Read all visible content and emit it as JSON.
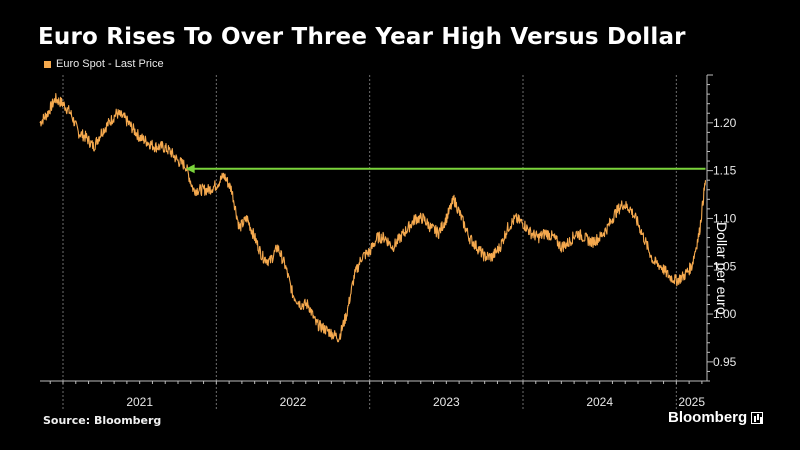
{
  "title": "Euro Rises To Over Three Year High Versus Dollar",
  "source": "Source: Bloomberg",
  "brand": "Bloomberg",
  "colors": {
    "series": "#f5a94e",
    "highlight": "#7ad33b",
    "grid": "#6e6e6e",
    "background": "#000000"
  },
  "chart_data": {
    "type": "line",
    "legend": [
      "Euro Spot - Last Price"
    ],
    "legend_position": "top-left",
    "ylabel": "Dollar per euro",
    "y_axis_side": "right",
    "ylim": [
      0.93,
      1.25
    ],
    "yticks": [
      "0.95",
      "1.00",
      "1.05",
      "1.10",
      "1.15",
      "1.20"
    ],
    "x_range": [
      2020.85,
      2025.2
    ],
    "year_boundaries": [
      2021,
      2022,
      2023,
      2024,
      2025
    ],
    "xtick_labels": [
      "2021",
      "2022",
      "2023",
      "2024",
      "2025"
    ],
    "grid": "vertical dashed at year boundaries",
    "series": [
      {
        "name": "Euro Spot - Last Price",
        "x": [
          2020.85,
          2020.9,
          2020.95,
          2021.0,
          2021.05,
          2021.1,
          2021.15,
          2021.2,
          2021.25,
          2021.3,
          2021.35,
          2021.4,
          2021.45,
          2021.5,
          2021.55,
          2021.6,
          2021.65,
          2021.7,
          2021.75,
          2021.8,
          2021.85,
          2021.9,
          2021.95,
          2022.0,
          2022.05,
          2022.1,
          2022.15,
          2022.2,
          2022.25,
          2022.3,
          2022.35,
          2022.4,
          2022.45,
          2022.5,
          2022.55,
          2022.6,
          2022.65,
          2022.7,
          2022.75,
          2022.8,
          2022.85,
          2022.9,
          2022.95,
          2023.0,
          2023.05,
          2023.1,
          2023.15,
          2023.2,
          2023.25,
          2023.3,
          2023.35,
          2023.4,
          2023.45,
          2023.5,
          2023.55,
          2023.6,
          2023.65,
          2023.7,
          2023.75,
          2023.8,
          2023.85,
          2023.9,
          2023.95,
          2024.0,
          2024.05,
          2024.1,
          2024.15,
          2024.2,
          2024.25,
          2024.3,
          2024.35,
          2024.4,
          2024.45,
          2024.5,
          2024.55,
          2024.6,
          2024.65,
          2024.7,
          2024.75,
          2024.8,
          2024.85,
          2024.9,
          2024.95,
          2025.0,
          2025.05,
          2025.1,
          2025.15,
          2025.19
        ],
        "values": [
          1.2,
          1.21,
          1.225,
          1.22,
          1.21,
          1.19,
          1.185,
          1.175,
          1.19,
          1.2,
          1.21,
          1.205,
          1.195,
          1.185,
          1.18,
          1.175,
          1.175,
          1.17,
          1.16,
          1.155,
          1.13,
          1.13,
          1.13,
          1.135,
          1.145,
          1.13,
          1.09,
          1.1,
          1.08,
          1.06,
          1.055,
          1.07,
          1.05,
          1.02,
          1.01,
          1.01,
          0.99,
          0.985,
          0.98,
          0.975,
          1.0,
          1.04,
          1.06,
          1.065,
          1.08,
          1.08,
          1.07,
          1.08,
          1.09,
          1.1,
          1.1,
          1.09,
          1.085,
          1.1,
          1.12,
          1.1,
          1.08,
          1.07,
          1.06,
          1.06,
          1.07,
          1.09,
          1.1,
          1.095,
          1.085,
          1.08,
          1.085,
          1.08,
          1.07,
          1.075,
          1.085,
          1.08,
          1.075,
          1.08,
          1.09,
          1.105,
          1.115,
          1.11,
          1.095,
          1.075,
          1.055,
          1.05,
          1.04,
          1.035,
          1.04,
          1.05,
          1.085,
          1.14
        ]
      }
    ],
    "annotations": [
      {
        "type": "horizontal-arrow",
        "y": 1.152,
        "from_x": 2025.19,
        "to_x": 2021.8,
        "color": "#7ad33b"
      }
    ]
  }
}
